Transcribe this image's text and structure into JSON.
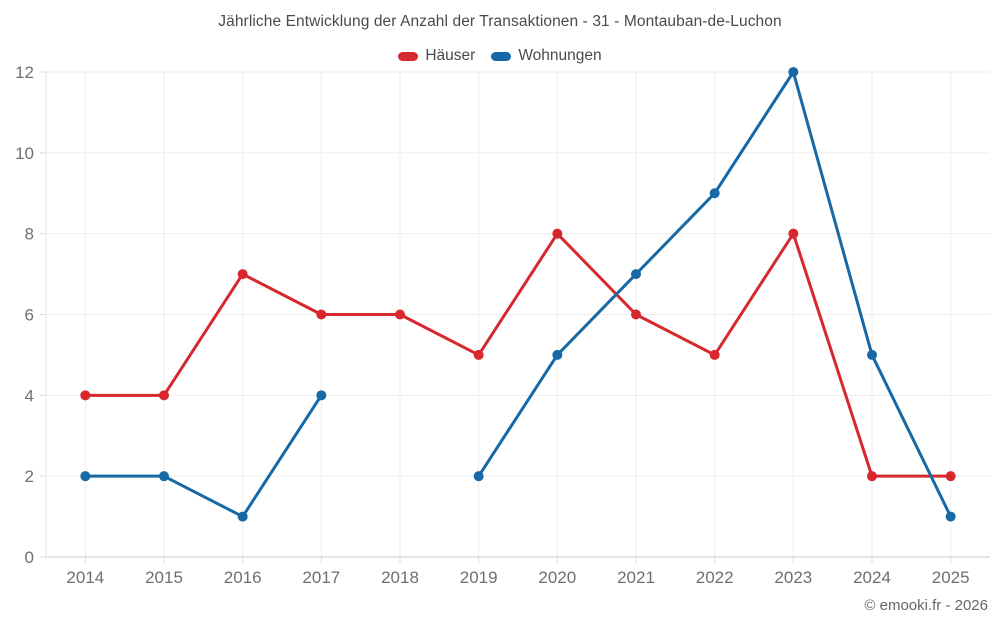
{
  "footer": {
    "text": "© emooki.fr - 2026"
  },
  "chart_data": {
    "type": "line",
    "title": "Jährliche Entwicklung der Anzahl der Transaktionen - 31 - Montauban-de-Luchon",
    "categories": [
      "2014",
      "2015",
      "2016",
      "2017",
      "2018",
      "2019",
      "2020",
      "2021",
      "2022",
      "2023",
      "2024",
      "2025"
    ],
    "series": [
      {
        "name": "Häuser",
        "color": "#d7282e",
        "values": [
          4,
          4,
          7,
          6,
          6,
          5,
          8,
          6,
          5,
          8,
          2,
          2
        ]
      },
      {
        "name": "Wohnungen",
        "color": "#1769a5",
        "values": [
          2,
          2,
          1,
          4,
          null,
          2,
          5,
          7,
          9,
          12,
          5,
          1
        ]
      }
    ],
    "xlabel": "",
    "ylabel": "",
    "ylim": [
      0,
      12
    ],
    "yticks": [
      0,
      2,
      4,
      6,
      8,
      10,
      12
    ],
    "grid": true,
    "legend_position": "top",
    "axis_colors": {
      "grid": "#ededed",
      "tick": "#d9d9d9",
      "x_axis_line": "#c8c8c8",
      "y_axis_line": "#e3e3e3",
      "tick_label": "#6f6f6f"
    }
  }
}
